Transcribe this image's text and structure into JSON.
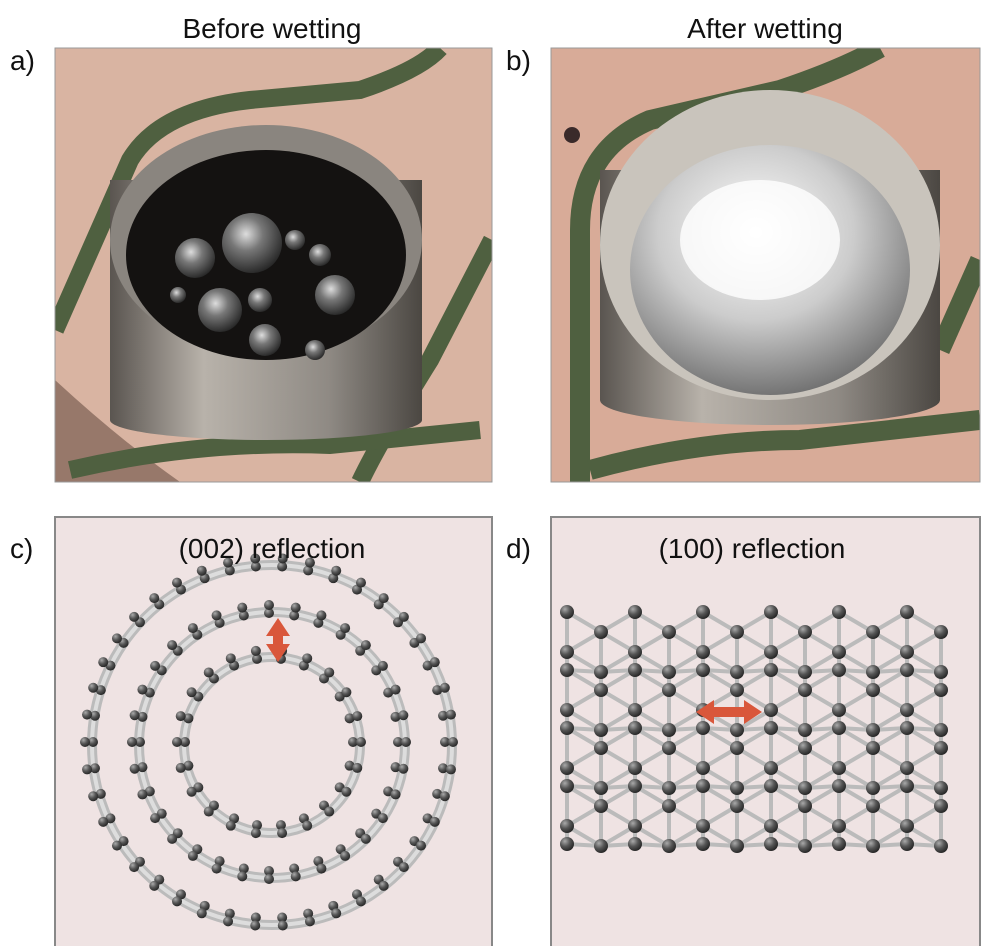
{
  "panels": [
    {
      "label": "a)",
      "title": "Before wetting"
    },
    {
      "label": "b)",
      "title": "After wetting"
    },
    {
      "label": "c)",
      "title": "(002) reflection"
    },
    {
      "label": "d)",
      "title": "(100) reflection"
    }
  ]
}
